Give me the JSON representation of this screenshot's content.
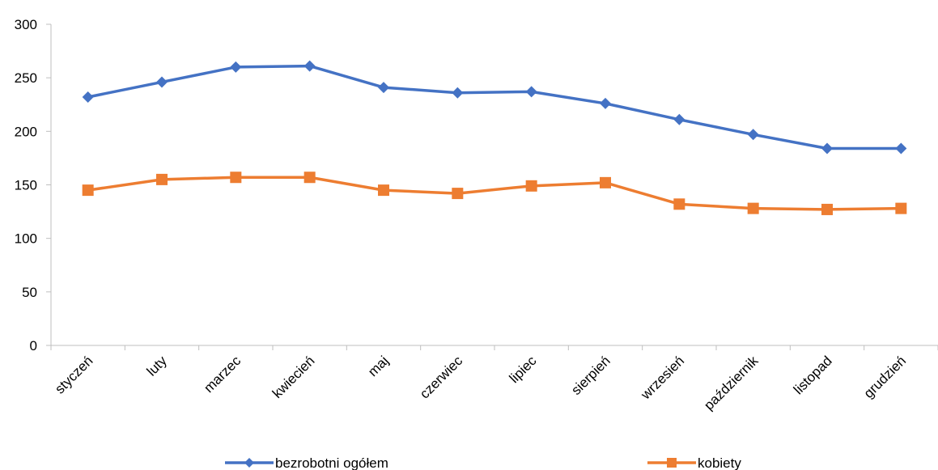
{
  "chart_data": {
    "type": "line",
    "title": "",
    "xlabel": "",
    "ylabel": "",
    "categories": [
      "styczeń",
      "luty",
      "marzec",
      "kwiecień",
      "maj",
      "czerwiec",
      "lipiec",
      "sierpień",
      "wrzesień",
      "październik",
      "listopad",
      "grudzień"
    ],
    "ylim": [
      0,
      300
    ],
    "yticks": [
      "0",
      "50",
      "100",
      "150",
      "200",
      "250",
      "300"
    ],
    "grid": false,
    "legend_position": "bottom",
    "series": [
      {
        "name": "bezrobotni ogółem",
        "color": "#4472C4",
        "marker": "diamond",
        "values": [
          232,
          246,
          260,
          261,
          241,
          236,
          237,
          226,
          211,
          197,
          184,
          184
        ]
      },
      {
        "name": "kobiety",
        "color": "#ED7D31",
        "marker": "square",
        "values": [
          145,
          155,
          157,
          157,
          145,
          142,
          149,
          152,
          132,
          128,
          127,
          128
        ]
      }
    ]
  }
}
